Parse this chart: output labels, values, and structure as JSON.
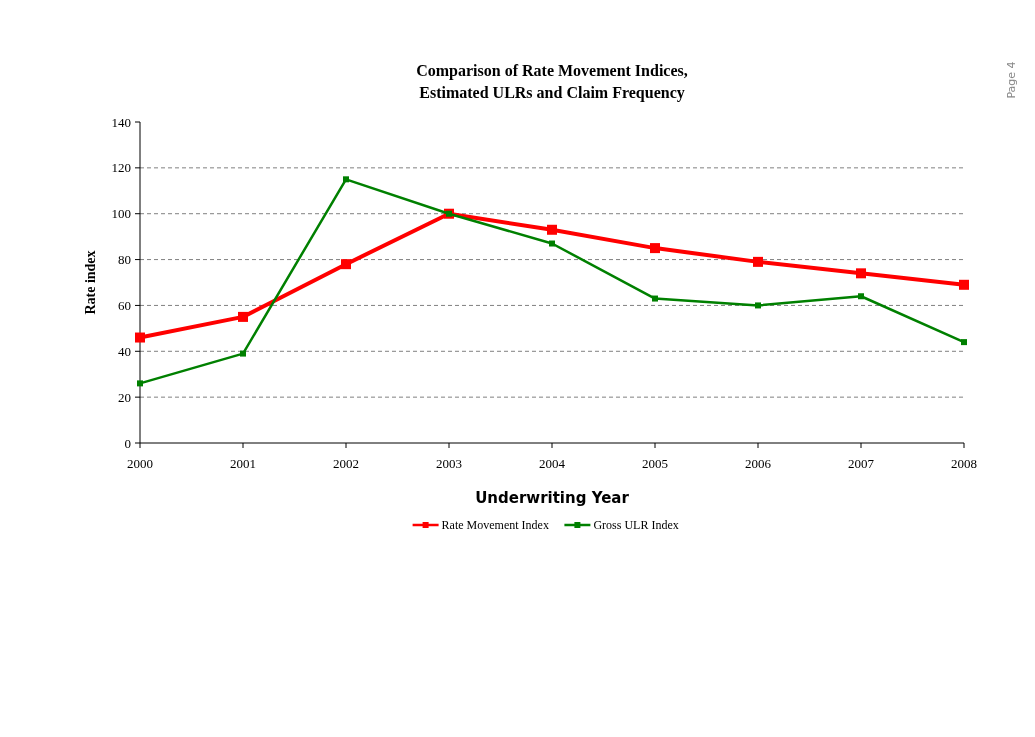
{
  "chart_data": {
    "type": "line",
    "title": "Comparison of Rate Movement Indices,\nEstimated ULRs and Claim Frequency",
    "xlabel": "Underwriting Year",
    "ylabel": "Rate index",
    "annotations": [
      "Page 4"
    ],
    "x": [
      2000,
      2001,
      2002,
      2003,
      2004,
      2005,
      2006,
      2007,
      2008
    ],
    "xlim": [
      2000,
      2008
    ],
    "xticks": [
      2000,
      2001,
      2002,
      2003,
      2004,
      2005,
      2006,
      2007,
      2008
    ],
    "ylim": [
      0,
      140
    ],
    "yticks": [
      0,
      20,
      40,
      60,
      80,
      100,
      120,
      140
    ],
    "grid": "y",
    "legend": "bottom",
    "marker": "square",
    "line_style": "solid",
    "series": [
      {
        "name": "Rate Movement Index",
        "color": "#ff0000",
        "values": [
          46,
          55,
          78,
          100,
          93,
          85,
          79,
          74,
          69
        ]
      },
      {
        "name": "Gross ULR Index",
        "color": "#008000",
        "values": [
          26,
          39,
          115,
          100,
          87,
          63,
          60,
          64,
          44
        ]
      }
    ]
  }
}
